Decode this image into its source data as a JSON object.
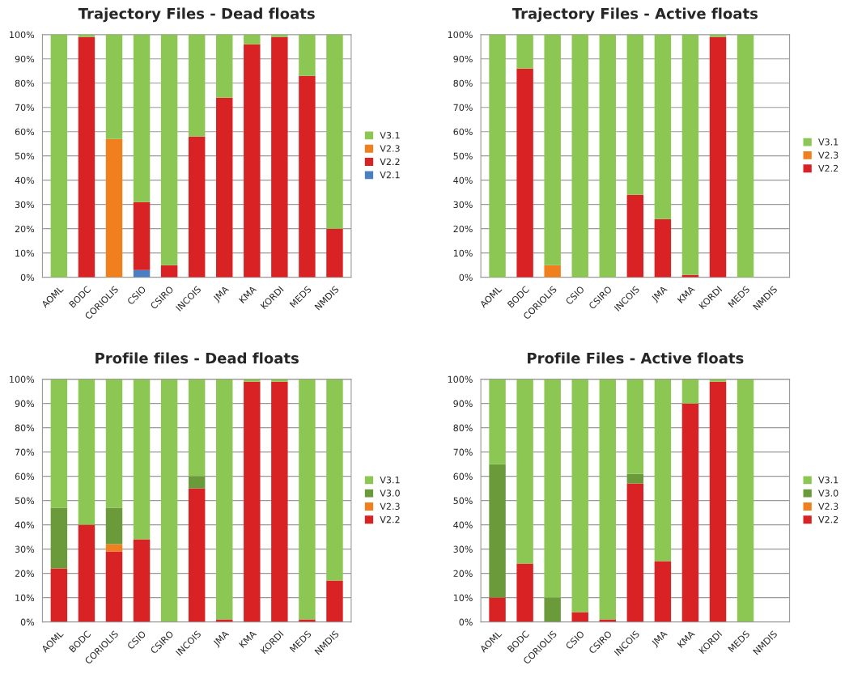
{
  "chart_data": [
    {
      "type": "bar",
      "title": "Trajectory Files - Dead floats",
      "stacked": true,
      "legend": "right",
      "grid": "y",
      "categories": [
        "AOML",
        "BODC",
        "CORIOLIS",
        "CSIO",
        "CSIRO",
        "INCOIS",
        "JMA",
        "KMA",
        "KORDI",
        "MEDS",
        "NMDIS"
      ],
      "ylim": [
        0,
        100
      ],
      "yticks": [
        {
          "value": 0,
          "label": "0%"
        },
        {
          "value": 10,
          "label": "10%"
        },
        {
          "value": 20,
          "label": "20%"
        },
        {
          "value": 30,
          "label": "30%"
        },
        {
          "value": 40,
          "label": "40%"
        },
        {
          "value": 50,
          "label": "50%"
        },
        {
          "value": 60,
          "label": "60%"
        },
        {
          "value": 70,
          "label": "70%"
        },
        {
          "value": 80,
          "label": "80%"
        },
        {
          "value": 90,
          "label": "90%"
        },
        {
          "value": 100,
          "label": "100%"
        }
      ],
      "series": [
        {
          "name": "V2.1",
          "color": "#4a7fc1",
          "values": [
            0,
            0,
            0,
            3,
            0,
            0,
            0,
            0,
            0,
            0,
            0
          ]
        },
        {
          "name": "V2.2",
          "color": "#d92224",
          "values": [
            0,
            99,
            0,
            28,
            5,
            58,
            74,
            96,
            99,
            83,
            20
          ]
        },
        {
          "name": "V2.3",
          "color": "#f07f1e",
          "values": [
            0,
            0,
            57,
            0,
            0,
            0,
            0,
            0,
            0,
            0,
            0
          ]
        },
        {
          "name": "V3.1",
          "color": "#8cc653",
          "values": [
            100,
            1,
            43,
            69,
            95,
            42,
            26,
            4,
            1,
            17,
            80
          ]
        }
      ]
    },
    {
      "type": "bar",
      "title": "Trajectory Files - Active floats",
      "stacked": true,
      "legend": "right",
      "grid": "y",
      "categories": [
        "AOML",
        "BODC",
        "CORIOLIS",
        "CSIO",
        "CSIRO",
        "INCOIS",
        "JMA",
        "KMA",
        "KORDI",
        "MEDS",
        "NMDIS"
      ],
      "ylim": [
        0,
        100
      ],
      "yticks": [
        {
          "value": 0,
          "label": "0%"
        },
        {
          "value": 10,
          "label": "10%"
        },
        {
          "value": 20,
          "label": "20%"
        },
        {
          "value": 30,
          "label": "30%"
        },
        {
          "value": 40,
          "label": "40%"
        },
        {
          "value": 50,
          "label": "50%"
        },
        {
          "value": 60,
          "label": "60%"
        },
        {
          "value": 70,
          "label": "70%"
        },
        {
          "value": 80,
          "label": "80%"
        },
        {
          "value": 90,
          "label": "90%"
        },
        {
          "value": 100,
          "label": "100%"
        }
      ],
      "series": [
        {
          "name": "V2.2",
          "color": "#d92224",
          "values": [
            0,
            86,
            0,
            0,
            0,
            34,
            24,
            1,
            99,
            0,
            null
          ]
        },
        {
          "name": "V2.3",
          "color": "#f07f1e",
          "values": [
            0,
            0,
            5,
            0,
            0,
            0,
            0,
            0,
            0,
            0,
            null
          ]
        },
        {
          "name": "V3.1",
          "color": "#8cc653",
          "values": [
            100,
            14,
            95,
            100,
            100,
            66,
            76,
            99,
            1,
            100,
            null
          ]
        }
      ]
    },
    {
      "type": "bar",
      "title": "Profile files - Dead floats",
      "stacked": true,
      "legend": "right",
      "grid": "y",
      "categories": [
        "AOML",
        "BODC",
        "CORIOLIS",
        "CSIO",
        "CSIRO",
        "INCOIS",
        "JMA",
        "KMA",
        "KORDI",
        "MEDS",
        "NMDIS"
      ],
      "ylim": [
        0,
        100
      ],
      "yticks": [
        {
          "value": 0,
          "label": "0%"
        },
        {
          "value": 10,
          "label": "10%"
        },
        {
          "value": 20,
          "label": "20%"
        },
        {
          "value": 30,
          "label": "30%"
        },
        {
          "value": 40,
          "label": "40%"
        },
        {
          "value": 50,
          "label": "50%"
        },
        {
          "value": 60,
          "label": "60%"
        },
        {
          "value": 70,
          "label": "70%"
        },
        {
          "value": 80,
          "label": "80%"
        },
        {
          "value": 90,
          "label": "90%"
        },
        {
          "value": 100,
          "label": "100%"
        }
      ],
      "series": [
        {
          "name": "V2.2",
          "color": "#d92224",
          "values": [
            22,
            40,
            29,
            34,
            0,
            55,
            1,
            99,
            99,
            1,
            17
          ]
        },
        {
          "name": "V2.3",
          "color": "#f07f1e",
          "values": [
            0,
            0,
            3,
            0,
            0,
            0,
            0,
            0,
            0,
            0,
            0
          ]
        },
        {
          "name": "V3.0",
          "color": "#6a9a3a",
          "values": [
            25,
            0,
            15,
            0,
            0,
            5,
            0,
            0,
            0,
            0,
            0
          ]
        },
        {
          "name": "V3.1",
          "color": "#8cc653",
          "values": [
            53,
            60,
            53,
            66,
            100,
            40,
            99,
            1,
            1,
            99,
            83
          ]
        }
      ]
    },
    {
      "type": "bar",
      "title": "Profile Files - Active floats",
      "stacked": true,
      "legend": "right",
      "grid": "y",
      "categories": [
        "AOML",
        "BODC",
        "CORIOLIS",
        "CSIO",
        "CSIRO",
        "INCOIS",
        "JMA",
        "KMA",
        "KORDI",
        "MEDS",
        "NMDIS"
      ],
      "ylim": [
        0,
        100
      ],
      "yticks": [
        {
          "value": 0,
          "label": "0%"
        },
        {
          "value": 10,
          "label": "10%"
        },
        {
          "value": 20,
          "label": "20%"
        },
        {
          "value": 30,
          "label": "30%"
        },
        {
          "value": 40,
          "label": "40%"
        },
        {
          "value": 50,
          "label": "50%"
        },
        {
          "value": 60,
          "label": "60%"
        },
        {
          "value": 70,
          "label": "70%"
        },
        {
          "value": 80,
          "label": "80%"
        },
        {
          "value": 90,
          "label": "90%"
        },
        {
          "value": 100,
          "label": "100%"
        }
      ],
      "series": [
        {
          "name": "V2.2",
          "color": "#d92224",
          "values": [
            10,
            24,
            0,
            4,
            1,
            57,
            25,
            90,
            99,
            0,
            null
          ]
        },
        {
          "name": "V2.3",
          "color": "#f07f1e",
          "values": [
            0,
            0,
            0,
            0,
            0,
            0,
            0,
            0,
            0,
            0,
            null
          ]
        },
        {
          "name": "V3.0",
          "color": "#6a9a3a",
          "values": [
            55,
            0,
            10,
            0,
            0,
            4,
            0,
            0,
            0,
            0,
            null
          ]
        },
        {
          "name": "V3.1",
          "color": "#8cc653",
          "values": [
            35,
            76,
            90,
            96,
            99,
            39,
            75,
            10,
            1,
            100,
            null
          ]
        }
      ]
    }
  ]
}
